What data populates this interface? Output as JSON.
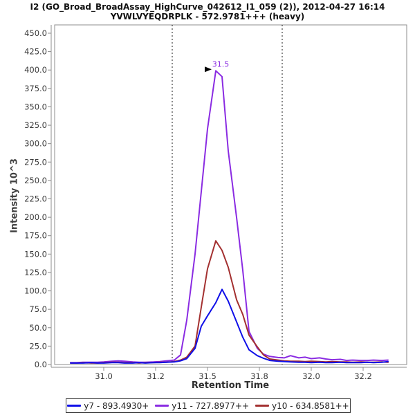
{
  "window": {
    "title_line1": "I2 (GO_Broad_BroadAssay_HighCurve_042612_I1_059 (2)), 2012-04-27 16:14",
    "title_line2": "YVWLVYEQDRPLK - 572.9781+++ (heavy)"
  },
  "axes": {
    "x_label": "Retention Time",
    "y_label": "Intensity 10^3"
  },
  "legend": {
    "items": [
      {
        "label": "y7 - 893.4930+",
        "color": "#0f0fe8"
      },
      {
        "label": "y11 - 727.8977++",
        "color": "#8a2be2"
      },
      {
        "label": "y10 - 634.8581++",
        "color": "#a33030"
      }
    ]
  },
  "chart_data": {
    "type": "line",
    "title": "I2 (GO_Broad_BroadAssay_HighCurve_042612_I1_059 (2)), 2012-04-27 16:14",
    "subtitle": "YVWLVYEQDRPLK - 572.9781+++ (heavy)",
    "xlabel": "Retention Time",
    "ylabel": "Intensity 10^3",
    "xlim": [
      30.76,
      32.46
    ],
    "ylim": [
      0,
      461
    ],
    "grid": false,
    "legend_position": "bottom-center",
    "x_ticks": [
      31.0,
      31.25,
      31.5,
      31.75,
      32.0,
      32.25
    ],
    "x_tick_labels": [
      "31.0",
      "31.2",
      "31.5",
      "31.8",
      "32.0",
      "32.2"
    ],
    "y_ticks": [
      0,
      25,
      50,
      75,
      100,
      125,
      150,
      175,
      200,
      225,
      250,
      275,
      300,
      325,
      350,
      375,
      400,
      425,
      450
    ],
    "y_tick_labels": [
      "0.0",
      "25.0",
      "50.0",
      "75.0",
      "100.0",
      "125.0",
      "150.0",
      "175.0",
      "200.0",
      "225.0",
      "250.0",
      "275.0",
      "300.0",
      "325.0",
      "350.0",
      "375.0",
      "400.0",
      "425.0",
      "450.0"
    ],
    "integration_boundaries": [
      31.33,
      31.86
    ],
    "peak_annotation": {
      "text": "31.5",
      "x": 31.54,
      "y": 399,
      "color": "#8a2be2"
    },
    "x": [
      30.84,
      30.87,
      30.9,
      30.94,
      30.97,
      31.0,
      31.04,
      31.07,
      31.1,
      31.14,
      31.17,
      31.2,
      31.24,
      31.27,
      31.3,
      31.34,
      31.37,
      31.4,
      31.44,
      31.47,
      31.5,
      31.54,
      31.57,
      31.6,
      31.64,
      31.67,
      31.7,
      31.74,
      31.77,
      31.8,
      31.84,
      31.87,
      31.9,
      31.94,
      31.97,
      32.0,
      32.04,
      32.07,
      32.1,
      32.14,
      32.17,
      32.2,
      32.24,
      32.27,
      32.3,
      32.34,
      32.37
    ],
    "series": [
      {
        "name": "y11 - 727.8977++",
        "color": "#8a2be2",
        "values": [
          2.5,
          2.5,
          3,
          3,
          3,
          3.5,
          4.5,
          5,
          4.5,
          3.5,
          3,
          3,
          3.5,
          4,
          5,
          6,
          13,
          60,
          150,
          235,
          320,
          399,
          391,
          290,
          200,
          128,
          45,
          22,
          14,
          11,
          9.5,
          9,
          12,
          9,
          10,
          8,
          9,
          7.5,
          6.5,
          7,
          5.5,
          6,
          5.5,
          5.5,
          6,
          5.5,
          6
        ]
      },
      {
        "name": "y10 - 634.8581++",
        "color": "#a33030",
        "values": [
          2,
          2,
          2.5,
          2,
          2,
          2.5,
          3,
          3,
          2.5,
          2.5,
          2,
          2.5,
          2.5,
          3,
          3,
          4,
          6,
          10,
          25,
          78,
          130,
          168,
          155,
          132,
          88,
          68,
          40,
          24,
          13,
          7.5,
          6,
          5,
          4.5,
          4.5,
          4,
          4.5,
          4,
          3.5,
          4,
          3.5,
          3.5,
          3,
          3.5,
          3,
          3,
          3.5,
          3
        ]
      },
      {
        "name": "y7 - 893.4930+",
        "color": "#0f0fe8",
        "values": [
          2,
          2,
          2,
          2.5,
          2,
          2,
          2.5,
          2.5,
          2,
          2,
          2.5,
          2,
          2.5,
          2.5,
          3,
          3.5,
          5,
          8,
          22,
          52,
          66,
          84,
          102,
          86,
          58,
          37,
          20,
          12,
          8.5,
          5.5,
          4.5,
          4,
          3.5,
          3,
          3,
          2.5,
          3,
          2.5,
          2.5,
          3,
          2.5,
          2.5,
          2.5,
          3,
          2.5,
          3,
          4
        ]
      }
    ]
  }
}
